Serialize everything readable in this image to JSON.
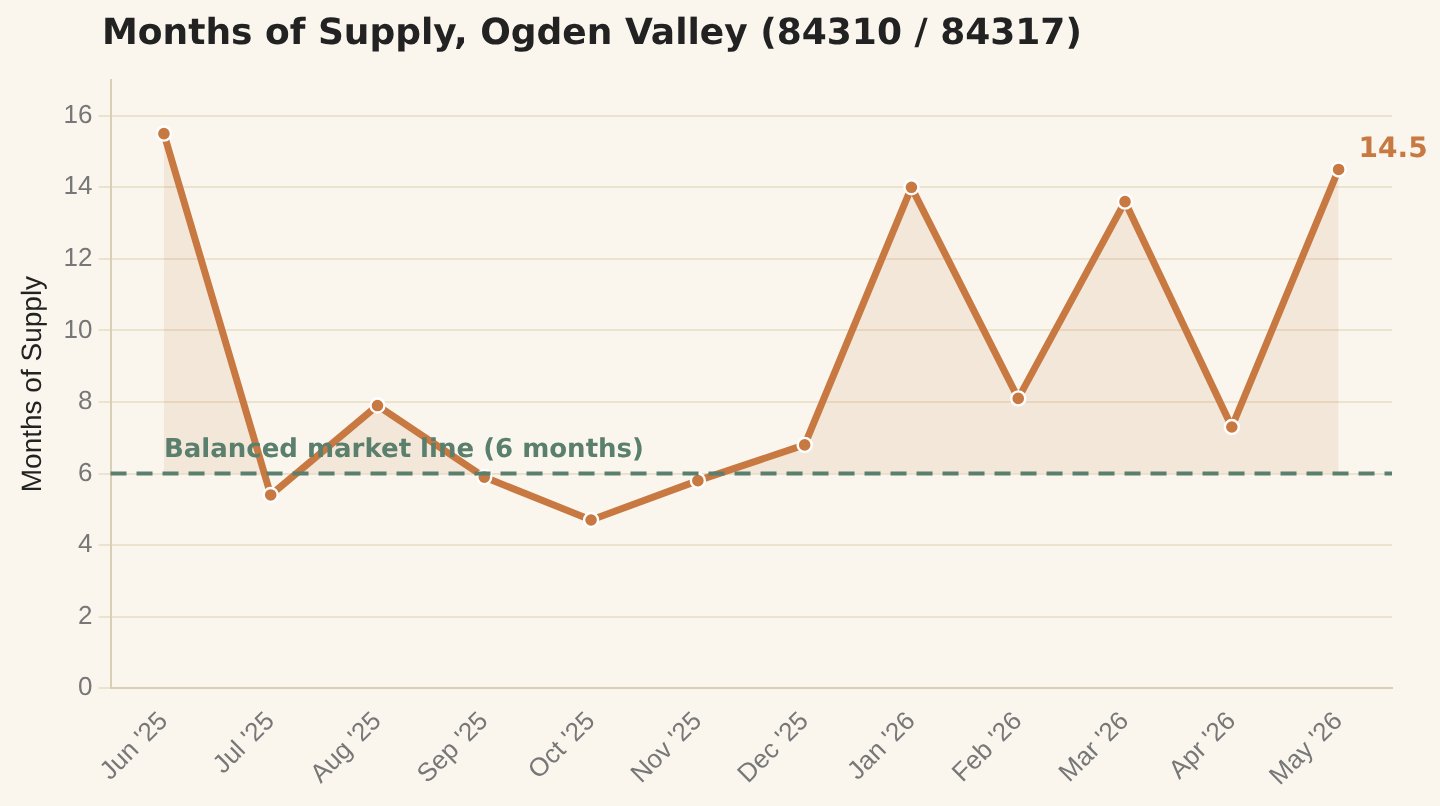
{
  "chart_data": {
    "type": "area",
    "title": "Months of Supply, Ogden Valley (84310 / 84317)",
    "ylabel": "Months of Supply",
    "categories": [
      "Jun '25",
      "Jul '25",
      "Aug '25",
      "Sep '25",
      "Oct '25",
      "Nov '25",
      "Dec '25",
      "Jan '26",
      "Feb '26",
      "Mar '26",
      "Apr '26",
      "May '26"
    ],
    "series": [
      {
        "color": "#c87941",
        "values": [
          15.5,
          5.4,
          7.9,
          5.9,
          4.7,
          5.8,
          6.8,
          14.0,
          8.1,
          13.6,
          7.3,
          14.5
        ],
        "value_labels": [
          null,
          null,
          null,
          null,
          null,
          null,
          null,
          null,
          null,
          null,
          null,
          "14.5"
        ]
      }
    ],
    "ylim": [
      0,
      17
    ],
    "yticks": [
      0,
      2,
      4,
      6,
      8,
      10,
      12,
      14,
      16
    ],
    "grid": "y",
    "legend": false,
    "marker": "circle",
    "line_style": "solid",
    "ref_lines": [
      {
        "axis": "y",
        "value": 6,
        "label": "Balanced market line (6 months)",
        "color": "#5a7f6d",
        "line_style": "dashed"
      }
    ]
  }
}
